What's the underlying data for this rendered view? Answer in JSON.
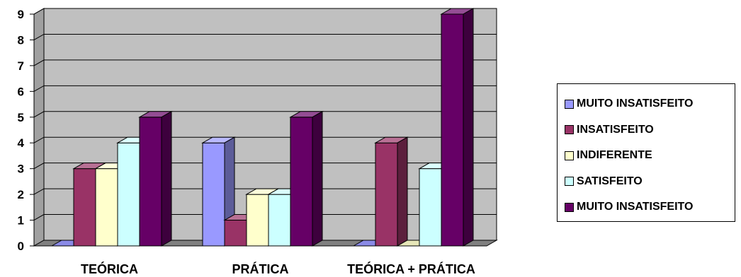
{
  "chart_data": {
    "type": "bar",
    "title": "",
    "xlabel": "",
    "ylabel": "",
    "ylim": [
      0,
      9
    ],
    "yticks": [
      "0",
      "1",
      "2",
      "3",
      "4",
      "5",
      "6",
      "7",
      "8",
      "9"
    ],
    "grid": true,
    "legend_position": "right",
    "style": "3d-clustered-column",
    "categories": [
      "TEÓRICA",
      "PRÁTICA",
      "TEÓRICA + PRÁTICA"
    ],
    "series": [
      {
        "name": "MUITO INSATISFEITO",
        "color": "#9999FF",
        "values": [
          0,
          4,
          0
        ]
      },
      {
        "name": "INSATISFEITO",
        "color": "#993366",
        "values": [
          3,
          1,
          4
        ]
      },
      {
        "name": "INDIFERENTE",
        "color": "#FFFFCC",
        "values": [
          3,
          2,
          0
        ]
      },
      {
        "name": "SATISFEITO",
        "color": "#CCFFFF",
        "values": [
          4,
          2,
          3
        ]
      },
      {
        "name": "MUITO INSATISFEITO",
        "color": "#660066",
        "values": [
          5,
          5,
          9
        ]
      }
    ],
    "colors": {
      "wall": "#C0C0C0",
      "floor": "#808080",
      "gridline": "#000000"
    }
  }
}
